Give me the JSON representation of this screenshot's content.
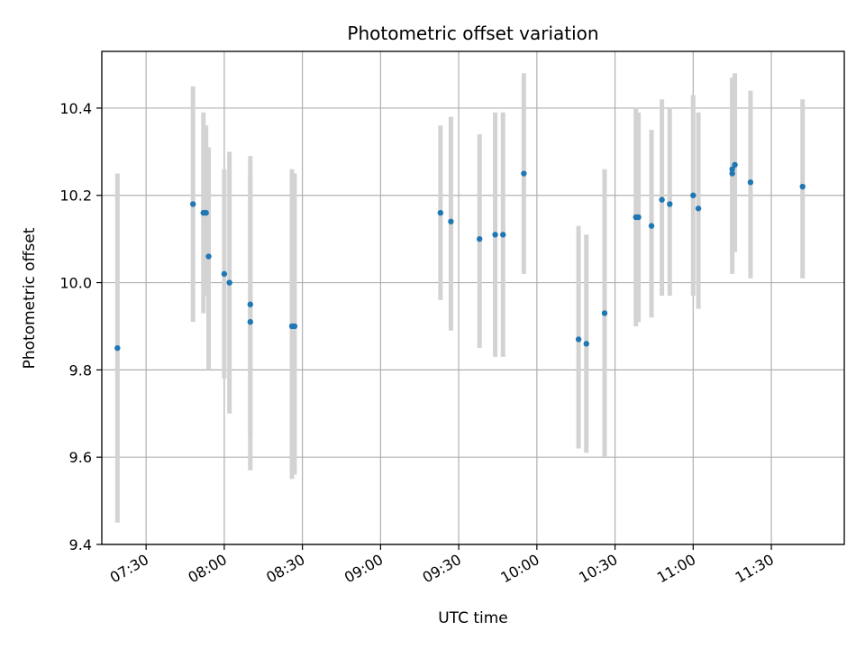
{
  "chart_data": {
    "type": "scatter",
    "title": "Photometric offset variation",
    "xlabel": "UTC time",
    "ylabel": "Photometric offset",
    "x_is_time": true,
    "xlim": [
      "07:13",
      "11:58"
    ],
    "ylim": [
      9.4,
      10.53
    ],
    "x_ticks": [
      "07:30",
      "08:00",
      "08:30",
      "09:00",
      "09:30",
      "10:00",
      "10:30",
      "11:00",
      "11:30"
    ],
    "y_ticks": [
      9.4,
      9.6,
      9.8,
      10.0,
      10.2,
      10.4
    ],
    "y_tick_labels": [
      "9.4",
      "9.6",
      "9.8",
      "10.0",
      "10.2",
      "10.4"
    ],
    "grid": true,
    "colors": {
      "marker": "#1f77b4",
      "errorbar": "#d3d3d3",
      "grid": "#b0b0b0",
      "axis": "#000000"
    },
    "points": [
      {
        "x": "07:19",
        "y": 9.85,
        "ymin": 9.45,
        "ymax": 10.25
      },
      {
        "x": "07:48",
        "y": 10.18,
        "ymin": 9.91,
        "ymax": 10.45
      },
      {
        "x": "07:52",
        "y": 10.16,
        "ymin": 9.93,
        "ymax": 10.39
      },
      {
        "x": "07:53",
        "y": 10.16,
        "ymin": 9.97,
        "ymax": 10.36
      },
      {
        "x": "07:54",
        "y": 10.06,
        "ymin": 9.8,
        "ymax": 10.31
      },
      {
        "x": "08:00",
        "y": 10.02,
        "ymin": 9.78,
        "ymax": 10.26
      },
      {
        "x": "08:02",
        "y": 10.0,
        "ymin": 9.7,
        "ymax": 10.3
      },
      {
        "x": "08:10",
        "y": 9.91,
        "ymin": 9.57,
        "ymax": 10.29
      },
      {
        "x": "08:10",
        "y": 9.95,
        "ymin": 9.65,
        "ymax": 10.24
      },
      {
        "x": "08:26",
        "y": 9.9,
        "ymin": 9.55,
        "ymax": 10.26
      },
      {
        "x": "08:27",
        "y": 9.9,
        "ymin": 9.56,
        "ymax": 10.25
      },
      {
        "x": "09:23",
        "y": 10.16,
        "ymin": 9.96,
        "ymax": 10.36
      },
      {
        "x": "09:27",
        "y": 10.14,
        "ymin": 9.89,
        "ymax": 10.38
      },
      {
        "x": "09:38",
        "y": 10.1,
        "ymin": 9.85,
        "ymax": 10.34
      },
      {
        "x": "09:44",
        "y": 10.11,
        "ymin": 9.83,
        "ymax": 10.39
      },
      {
        "x": "09:47",
        "y": 10.11,
        "ymin": 9.83,
        "ymax": 10.39
      },
      {
        "x": "09:55",
        "y": 10.25,
        "ymin": 10.02,
        "ymax": 10.48
      },
      {
        "x": "10:16",
        "y": 9.87,
        "ymin": 9.62,
        "ymax": 10.13
      },
      {
        "x": "10:19",
        "y": 9.86,
        "ymin": 9.61,
        "ymax": 10.11
      },
      {
        "x": "10:26",
        "y": 9.93,
        "ymin": 9.6,
        "ymax": 10.26
      },
      {
        "x": "10:38",
        "y": 10.15,
        "ymin": 9.9,
        "ymax": 10.4
      },
      {
        "x": "10:39",
        "y": 10.15,
        "ymin": 9.91,
        "ymax": 10.39
      },
      {
        "x": "10:44",
        "y": 10.13,
        "ymin": 9.92,
        "ymax": 10.35
      },
      {
        "x": "10:48",
        "y": 10.19,
        "ymin": 9.97,
        "ymax": 10.42
      },
      {
        "x": "10:51",
        "y": 10.18,
        "ymin": 9.97,
        "ymax": 10.4
      },
      {
        "x": "11:00",
        "y": 10.2,
        "ymin": 9.97,
        "ymax": 10.43
      },
      {
        "x": "11:02",
        "y": 10.17,
        "ymin": 9.94,
        "ymax": 10.39
      },
      {
        "x": "11:15",
        "y": 10.25,
        "ymin": 10.02,
        "ymax": 10.47
      },
      {
        "x": "11:15",
        "y": 10.26,
        "ymin": 10.06,
        "ymax": 10.46
      },
      {
        "x": "11:16",
        "y": 10.27,
        "ymin": 10.07,
        "ymax": 10.48
      },
      {
        "x": "11:22",
        "y": 10.23,
        "ymin": 10.01,
        "ymax": 10.44
      },
      {
        "x": "11:42",
        "y": 10.22,
        "ymin": 10.01,
        "ymax": 10.42
      }
    ]
  }
}
